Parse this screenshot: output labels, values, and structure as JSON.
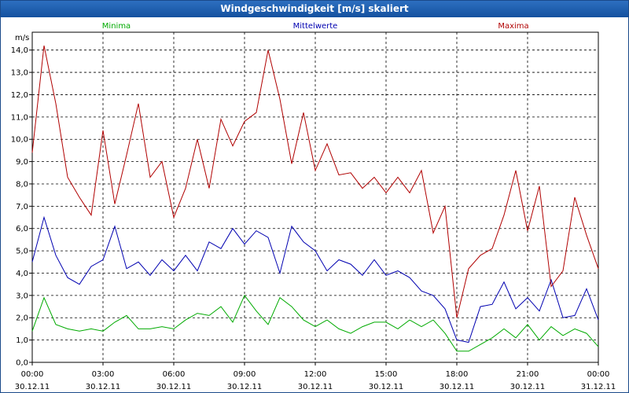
{
  "window": {
    "title": "Windgeschwindigkeit [m/s] skaliert"
  },
  "chart_data": {
    "type": "line",
    "title": "Windgeschwindigkeit [m/s] skaliert",
    "ylabel": "m/s",
    "ylim": [
      0,
      14.8
    ],
    "yticks": [
      "0,0",
      "1,0",
      "2,0",
      "3,0",
      "4,0",
      "5,0",
      "6,0",
      "7,0",
      "8,0",
      "9,0",
      "10,0",
      "11,0",
      "12,0",
      "13,0",
      "14,0"
    ],
    "xlim_hours": [
      0,
      24
    ],
    "xticks": [
      {
        "h": 0,
        "time": "00:00",
        "date": "30.12.11"
      },
      {
        "h": 3,
        "time": "03:00",
        "date": "30.12.11"
      },
      {
        "h": 6,
        "time": "06:00",
        "date": "30.12.11"
      },
      {
        "h": 9,
        "time": "09:00",
        "date": "30.12.11"
      },
      {
        "h": 12,
        "time": "12:00",
        "date": "30.12.11"
      },
      {
        "h": 15,
        "time": "15:00",
        "date": "30.12.11"
      },
      {
        "h": 18,
        "time": "18:00",
        "date": "30.12.11"
      },
      {
        "h": 21,
        "time": "21:00",
        "date": "30.12.11"
      },
      {
        "h": 24,
        "time": "00:00",
        "date": "31.12.11"
      }
    ],
    "grid": true,
    "series": [
      {
        "name": "Minima",
        "color": "#00aa00",
        "x": [
          0,
          0.5,
          1,
          1.5,
          2,
          2.5,
          3,
          3.5,
          4,
          4.5,
          5,
          5.5,
          6,
          6.5,
          7,
          7.5,
          8,
          8.5,
          9,
          9.5,
          10,
          10.5,
          11,
          11.5,
          12,
          12.5,
          13,
          13.5,
          14,
          14.5,
          15,
          15.5,
          16,
          16.5,
          17,
          17.5,
          18,
          18.5,
          19,
          19.5,
          20,
          20.5,
          21,
          21.5,
          22,
          22.5,
          23,
          23.5,
          24
        ],
        "values": [
          1.4,
          2.9,
          1.7,
          1.5,
          1.4,
          1.5,
          1.4,
          1.8,
          2.1,
          1.5,
          1.5,
          1.6,
          1.5,
          1.9,
          2.2,
          2.1,
          2.5,
          1.8,
          3.0,
          2.3,
          1.7,
          2.9,
          2.5,
          1.9,
          1.6,
          1.9,
          1.5,
          1.3,
          1.6,
          1.8,
          1.8,
          1.5,
          1.9,
          1.6,
          1.9,
          1.3,
          0.5,
          0.5,
          0.8,
          1.1,
          1.5,
          1.1,
          1.7,
          1.0,
          1.6,
          1.2,
          1.5,
          1.3,
          0.7
        ]
      },
      {
        "name": "Mittelwerte",
        "color": "#0000b0",
        "x": [
          0,
          0.5,
          1,
          1.5,
          2,
          2.5,
          3,
          3.5,
          4,
          4.5,
          5,
          5.5,
          6,
          6.5,
          7,
          7.5,
          8,
          8.5,
          9,
          9.5,
          10,
          10.5,
          11,
          11.5,
          12,
          12.5,
          13,
          13.5,
          14,
          14.5,
          15,
          15.5,
          16,
          16.5,
          17,
          17.5,
          18,
          18.5,
          19,
          19.5,
          20,
          20.5,
          21,
          21.5,
          22,
          22.5,
          23,
          23.5,
          24
        ],
        "values": [
          4.5,
          6.5,
          4.8,
          3.8,
          3.5,
          4.3,
          4.6,
          6.1,
          4.2,
          4.5,
          3.9,
          4.6,
          4.1,
          4.8,
          4.1,
          5.4,
          5.1,
          6.0,
          5.3,
          5.9,
          5.6,
          4.0,
          6.1,
          5.4,
          5.0,
          4.1,
          4.6,
          4.4,
          3.9,
          4.6,
          3.9,
          4.1,
          3.8,
          3.2,
          3.0,
          2.4,
          1.0,
          0.9,
          2.5,
          2.6,
          3.6,
          2.4,
          2.9,
          2.3,
          3.7,
          2.0,
          2.1,
          3.3,
          1.9
        ]
      },
      {
        "name": "Maxima",
        "color": "#b00000",
        "x": [
          0,
          0.5,
          1,
          1.5,
          2,
          2.5,
          3,
          3.5,
          4,
          4.5,
          5,
          5.5,
          6,
          6.5,
          7,
          7.5,
          8,
          8.5,
          9,
          9.5,
          10,
          10.5,
          11,
          11.5,
          12,
          12.5,
          13,
          13.5,
          14,
          14.5,
          15,
          15.5,
          16,
          16.5,
          17,
          17.5,
          18,
          18.5,
          19,
          19.5,
          20,
          20.5,
          21,
          21.5,
          22,
          22.5,
          23,
          23.5,
          24
        ],
        "values": [
          9.4,
          14.2,
          11.6,
          8.3,
          7.4,
          6.6,
          10.4,
          7.1,
          9.3,
          11.6,
          8.3,
          9.0,
          6.5,
          7.8,
          10.0,
          7.8,
          10.9,
          9.7,
          10.8,
          11.2,
          14.0,
          11.8,
          8.9,
          11.2,
          8.6,
          9.8,
          8.4,
          8.5,
          7.8,
          8.3,
          7.6,
          8.3,
          7.6,
          8.6,
          5.8,
          7.0,
          2.0,
          4.2,
          4.8,
          5.1,
          6.6,
          8.6,
          5.9,
          7.9,
          3.4,
          4.1,
          7.4,
          5.7,
          4.2
        ]
      }
    ]
  }
}
